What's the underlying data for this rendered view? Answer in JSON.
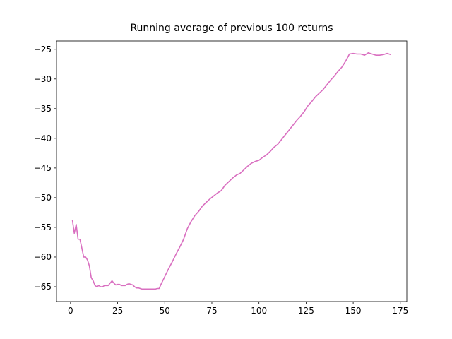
{
  "chart_data": {
    "type": "line",
    "title": "Running average of previous 100 returns",
    "x": [
      1,
      2,
      3,
      4,
      5,
      6,
      7,
      8,
      9,
      10,
      11,
      12,
      13,
      14,
      15,
      16,
      17,
      18,
      19,
      20,
      21,
      22,
      23,
      24,
      25,
      26,
      27,
      28,
      29,
      30,
      31,
      32,
      33,
      34,
      35,
      36,
      37,
      38,
      39,
      40,
      41,
      42,
      43,
      44,
      45,
      46,
      47,
      48,
      50,
      52,
      54,
      56,
      58,
      60,
      62,
      64,
      66,
      68,
      70,
      72,
      74,
      76,
      78,
      80,
      82,
      84,
      86,
      88,
      90,
      92,
      94,
      96,
      98,
      100,
      102,
      104,
      106,
      108,
      110,
      112,
      114,
      116,
      118,
      120,
      122,
      124,
      126,
      128,
      130,
      132,
      134,
      136,
      138,
      140,
      142,
      144,
      146,
      148,
      150,
      152,
      154,
      156,
      158,
      160,
      162,
      164,
      166,
      168,
      170
    ],
    "series": [
      {
        "color": "#d96fc0",
        "values": [
          -53.8,
          -56,
          -54.5,
          -57,
          -57,
          -58.5,
          -60,
          -60,
          -60.5,
          -61.5,
          -63.5,
          -64,
          -64.8,
          -65,
          -64.8,
          -65,
          -65,
          -64.8,
          -64.8,
          -64.8,
          -64.4,
          -64,
          -64.4,
          -64.7,
          -64.6,
          -64.6,
          -64.8,
          -64.8,
          -64.8,
          -64.6,
          -64.5,
          -64.6,
          -64.7,
          -65,
          -65.2,
          -65.2,
          -65.3,
          -65.4,
          -65.4,
          -65.4,
          -65.4,
          -65.4,
          -65.4,
          -65.4,
          -65.4,
          -65.3,
          -65.3,
          -64.6,
          -63.3,
          -62,
          -60.8,
          -59.5,
          -58.3,
          -57,
          -55.2,
          -54,
          -53,
          -52.3,
          -51.4,
          -50.8,
          -50.2,
          -49.7,
          -49.2,
          -48.8,
          -47.9,
          -47.3,
          -46.7,
          -46.2,
          -45.9,
          -45.3,
          -44.7,
          -44.2,
          -43.9,
          -43.7,
          -43.2,
          -42.8,
          -42.2,
          -41.5,
          -41,
          -40.2,
          -39.4,
          -38.6,
          -37.8,
          -37,
          -36.3,
          -35.5,
          -34.5,
          -33.8,
          -33,
          -32.4,
          -31.8,
          -31,
          -30.2,
          -29.5,
          -28.7,
          -28,
          -27,
          -25.8,
          -25.7,
          -25.8,
          -25.8,
          -26,
          -25.6,
          -25.8,
          -26,
          -26,
          -25.9,
          -25.7,
          -25.9
        ]
      }
    ],
    "xlim": [
      -7.45,
      178.45
    ],
    "xticks": [
      0,
      25,
      50,
      75,
      100,
      125,
      150,
      175
    ],
    "ylim": [
      -67.5,
      -23.6
    ],
    "yticks": [
      {
        "value": -65,
        "label": "−65"
      },
      {
        "value": -60,
        "label": "−60"
      },
      {
        "value": -55,
        "label": "−55"
      },
      {
        "value": -50,
        "label": "−50"
      },
      {
        "value": -45,
        "label": "−45"
      },
      {
        "value": -40,
        "label": "−40"
      },
      {
        "value": -35,
        "label": "−35"
      },
      {
        "value": -30,
        "label": "−30"
      },
      {
        "value": -25,
        "label": "−25"
      }
    ]
  }
}
